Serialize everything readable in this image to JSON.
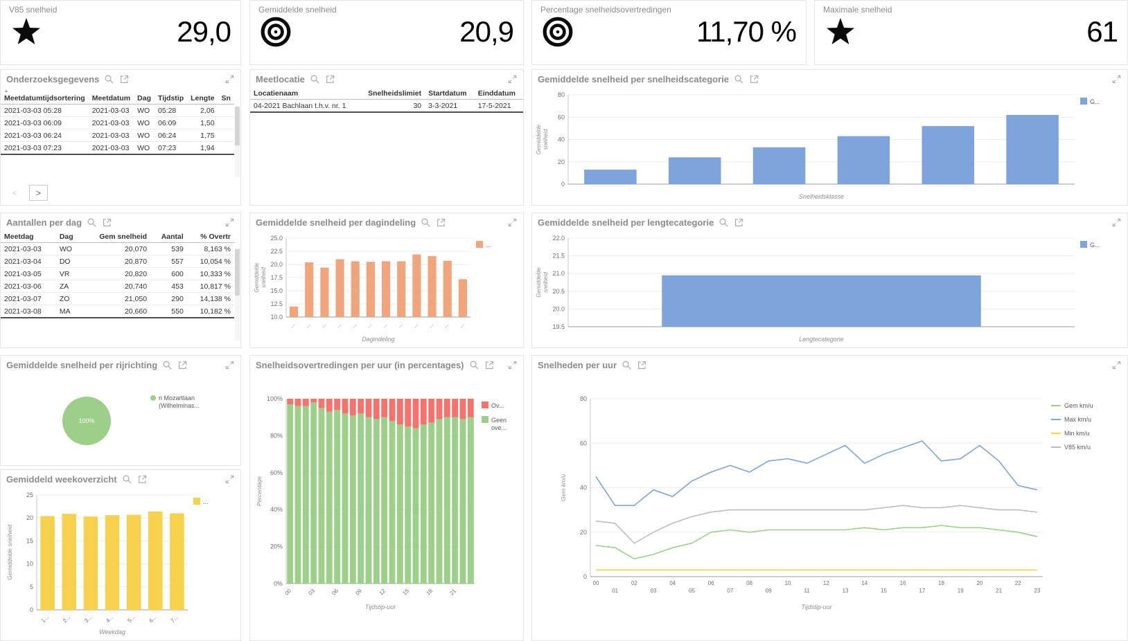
{
  "icons": {
    "sort_asc": "▲",
    "kpi_icons": [
      "star",
      "bullseye",
      "bullseye",
      "star"
    ],
    "panel_header_icons": [
      "search",
      "export",
      "expand"
    ]
  },
  "kpis": [
    {
      "title": "V85 snelheid",
      "icon": "star",
      "value": "29,0"
    },
    {
      "title": "Gemiddelde snelheid",
      "icon": "bullseye",
      "value": "20,9"
    },
    {
      "title": "Percentage snelheidsovertredingen",
      "icon": "bullseye",
      "value": "11,70 %"
    },
    {
      "title": "Maximale snelheid",
      "icon": "star",
      "value": "61"
    }
  ],
  "panels": {
    "onderzoeksgegevens": {
      "title": "Onderzoeksgegevens",
      "table": {
        "columns": [
          "Meetdatumtijdsortering",
          "Meetdatum",
          "Dag",
          "Tijdstip",
          "Lengte",
          "Sn"
        ],
        "sort_col": 0,
        "rows": [
          [
            "2021-03-03 05:28",
            "2021-03-03",
            "WO",
            "05:28",
            "2,06",
            ""
          ],
          [
            "2021-03-03 06:09",
            "2021-03-03",
            "WO",
            "06:09",
            "1,50",
            ""
          ],
          [
            "2021-03-03 06:24",
            "2021-03-03",
            "WO",
            "06:24",
            "1,75",
            ""
          ],
          [
            "2021-03-03 07:23",
            "2021-03-03",
            "WO",
            "07:23",
            "1,94",
            ""
          ]
        ]
      },
      "pager": {
        "prev": "<",
        "next": ">"
      }
    },
    "meetlocatie": {
      "title": "Meetlocatie",
      "table": {
        "columns": [
          "Locatienaam",
          "Snelheidslimiet",
          "Startdatum",
          "Einddatum"
        ],
        "rows": [
          [
            "04-2021 Bachlaan t.h.v. nr. 1",
            "30",
            "3-3-2021",
            "17-5-2021"
          ]
        ]
      }
    },
    "snelheidscategorie": {
      "title": "Gemiddelde snelheid per snelheidscategorie",
      "chart_data": {
        "type": "bar",
        "categories": [
          "",
          "",
          "",
          "",
          "",
          ""
        ],
        "values": [
          13,
          24,
          33,
          43,
          52,
          62
        ],
        "xlabel": "Snelheidsklasse",
        "ylabel": "Gemiddelde snelheid",
        "ylim": [
          0,
          80
        ],
        "yticks": [
          "0",
          "20",
          "40",
          "60",
          "80"
        ],
        "color": "#7fa3dc",
        "legend": "G...",
        "bar_frac": 0.62,
        "show_xticklabels": false
      }
    },
    "aantallen_per_dag": {
      "title": "Aantallen per dag",
      "table": {
        "columns": [
          "Meetdag",
          "Dag",
          "Gem snelheid",
          "Aantal",
          "% Overtr"
        ],
        "rows": [
          [
            "2021-03-03",
            "WO",
            "20,070",
            "539",
            "8,163 %"
          ],
          [
            "2021-03-04",
            "DO",
            "20,870",
            "557",
            "10,054 %"
          ],
          [
            "2021-03-05",
            "VR",
            "20,820",
            "600",
            "10,333 %"
          ],
          [
            "2021-03-06",
            "ZA",
            "20,740",
            "453",
            "10,817 %"
          ],
          [
            "2021-03-07",
            "ZO",
            "21,050",
            "290",
            "14,138 %"
          ],
          [
            "2021-03-08",
            "MA",
            "20,660",
            "550",
            "10,182 %"
          ]
        ]
      }
    },
    "dagindeling": {
      "title": "Gemiddelde snelheid per dagindeling",
      "chart_data": {
        "type": "bar",
        "categories": [
          "...",
          "...",
          "...",
          "...",
          "...",
          "...",
          "...",
          "...",
          "...",
          "...",
          "...",
          "..."
        ],
        "values": [
          12.0,
          20.4,
          19.4,
          21.0,
          20.6,
          20.5,
          20.6,
          20.6,
          21.9,
          21.6,
          20.7,
          17.2
        ],
        "xlabel": "Dagindeling",
        "ylabel": "Gemiddelde snelheid",
        "ylim": [
          10,
          25
        ],
        "yticks": [
          "10.0",
          "12.5",
          "15.0",
          "17.5",
          "20.0",
          "22.5",
          "25.0"
        ],
        "color": "#f0a57c",
        "legend": "...",
        "bar_frac": 0.55,
        "xticks_rotated": true
      }
    },
    "lengtecategorie": {
      "title": "Gemiddelde snelheid per lengtecategorie",
      "chart_data": {
        "type": "bar",
        "categories": [
          ""
        ],
        "values": [
          20.95
        ],
        "xlabel": "Lengtecategorie",
        "ylabel": "Gemiddelde snelheid",
        "ylim": [
          19.5,
          22.0
        ],
        "yticks": [
          "19.5",
          "20.0",
          "20.5",
          "21.0",
          "21.5",
          "22.0"
        ],
        "color": "#7fa3dc",
        "legend": "G...",
        "bar_frac": 0.63,
        "show_xticklabels": false
      }
    },
    "rijrichting": {
      "title": "Gemiddelde snelheid per rijrichting",
      "chart_data": {
        "type": "pie",
        "slices": [
          {
            "label": "ri Mozartlaan (Wilhelminas...",
            "value": 100,
            "display": "100%",
            "color": "#9dce8a"
          }
        ]
      }
    },
    "overtredingen": {
      "title": "Snelheidsovertredingen per uur (in percentages)",
      "chart_data": {
        "type": "stacked100",
        "x": [
          "00",
          "01",
          "02",
          "03",
          "04",
          "05",
          "06",
          "07",
          "08",
          "09",
          "10",
          "11",
          "12",
          "13",
          "14",
          "15",
          "16",
          "17",
          "18",
          "19",
          "20",
          "21",
          "22",
          "23"
        ],
        "xticks_shown": [
          "00",
          "03",
          "06",
          "09",
          "12",
          "15",
          "18",
          "21"
        ],
        "series": [
          {
            "name": "Ov...",
            "color": "#f4736e",
            "values": [
              3,
              4,
              4,
              2,
              5,
              7,
              6,
              8,
              9,
              8,
              10,
              11,
              10,
              12,
              14,
              15,
              16,
              14,
              13,
              11,
              10,
              10,
              11,
              10
            ]
          },
          {
            "name": "Geen ove...",
            "color": "#9dce8a",
            "values": [
              97,
              96,
              96,
              98,
              95,
              93,
              94,
              92,
              91,
              92,
              90,
              89,
              90,
              88,
              86,
              85,
              84,
              86,
              87,
              89,
              90,
              90,
              89,
              90
            ]
          }
        ],
        "xlabel": "Tijdstip-uur",
        "ylabel": "Percentage",
        "ylim": [
          0,
          100
        ],
        "yticks": [
          "0%",
          "20%",
          "40%",
          "60%",
          "80%",
          "100%"
        ],
        "bar_frac": 0.78
      }
    },
    "snelheden": {
      "title": "Snelheden per uur",
      "chart_data": {
        "type": "line",
        "x": [
          "00",
          "01",
          "02",
          "03",
          "04",
          "05",
          "06",
          "07",
          "08",
          "09",
          "10",
          "11",
          "12",
          "13",
          "14",
          "15",
          "16",
          "17",
          "18",
          "19",
          "20",
          "21",
          "22",
          "23"
        ],
        "series": [
          {
            "name": "Gem km/u",
            "color": "#9dce8a",
            "values": [
              14,
              13,
              8,
              10,
              13,
              15,
              20,
              21,
              20,
              21,
              21,
              21,
              21,
              21,
              22,
              21,
              22,
              22,
              23,
              22,
              22,
              21,
              20,
              18
            ]
          },
          {
            "name": "Max km/u",
            "color": "#7fa3dc",
            "values": [
              45,
              32,
              32,
              39,
              36,
              43,
              47,
              50,
              47,
              52,
              53,
              51,
              55,
              59,
              51,
              55,
              58,
              61,
              52,
              53,
              59,
              52,
              41,
              39
            ]
          },
          {
            "name": "Min km/u",
            "color": "#f5d04c",
            "values": [
              3,
              3,
              3,
              3,
              3,
              3,
              3,
              3,
              3,
              3,
              3,
              3,
              3,
              3,
              3,
              3,
              3,
              3,
              3,
              3,
              3,
              3,
              3,
              3
            ]
          },
          {
            "name": "V85 km/u",
            "color": "#bdbdbd",
            "values": [
              25,
              24,
              15,
              20,
              24,
              27,
              29,
              30,
              30,
              30,
              30,
              30,
              30,
              30,
              30,
              31,
              32,
              31,
              31,
              32,
              31,
              30,
              30,
              29
            ]
          }
        ],
        "xlabel": "Tijdstip-uur",
        "ylabel": "Gem km/u",
        "ylim": [
          0,
          80
        ],
        "yticks": [
          "0",
          "20",
          "40",
          "60",
          "80"
        ],
        "staggered_xticks": true
      }
    },
    "weekoverzicht": {
      "title": "Gemiddeld weekoverzicht",
      "chart_data": {
        "type": "bar",
        "categories": [
          "1...",
          "2...",
          "3...",
          "4...",
          "5...",
          "6...",
          "7..."
        ],
        "values": [
          20.4,
          20.9,
          20.3,
          20.6,
          20.7,
          21.4,
          21.0
        ],
        "xlabel": "Weekdag",
        "ylabel": "Gemiddelde snelheid",
        "ylim": [
          0,
          25
        ],
        "yticks": [
          "0",
          "5",
          "10",
          "15",
          "20",
          "25"
        ],
        "color": "#f7d14e",
        "legend": "...",
        "bar_frac": 0.66,
        "xticks_rotated": true
      }
    }
  }
}
